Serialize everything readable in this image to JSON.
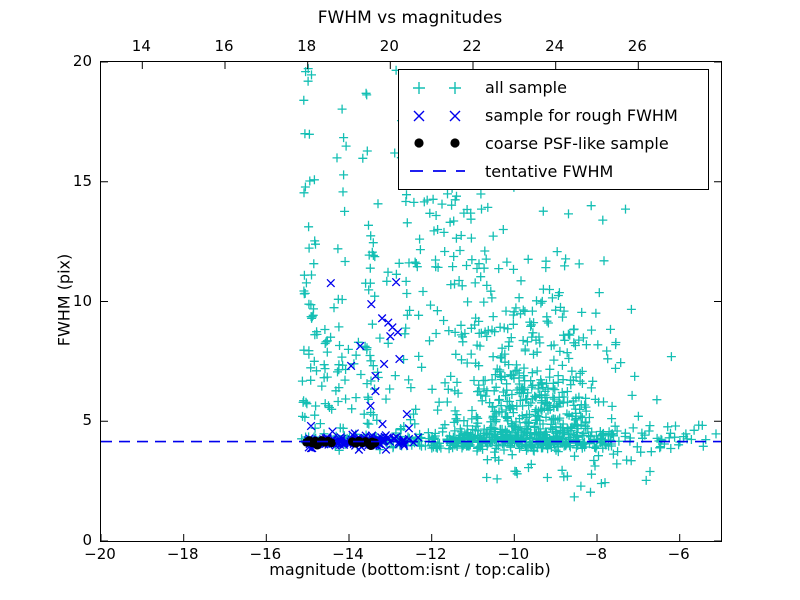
{
  "chart_data": {
    "type": "scatter",
    "title": "FWHM vs magnitudes",
    "xlabel": "magnitude (bottom:isnt / top:calib)",
    "ylabel": "FWHM (pix)",
    "xlim": [
      -20,
      -5
    ],
    "ylim": [
      0,
      20
    ],
    "x_ticks": [
      {
        "v": -20,
        "label": "−20"
      },
      {
        "v": -18,
        "label": "−18"
      },
      {
        "v": -16,
        "label": "−16"
      },
      {
        "v": -14,
        "label": "−14"
      },
      {
        "v": -12,
        "label": "−12"
      },
      {
        "v": -10,
        "label": "−10"
      },
      {
        "v": -8,
        "label": "−8"
      },
      {
        "v": -6,
        "label": "−6"
      }
    ],
    "y_ticks": [
      {
        "v": 0,
        "label": "0"
      },
      {
        "v": 5,
        "label": "5"
      },
      {
        "v": 10,
        "label": "10"
      },
      {
        "v": 15,
        "label": "15"
      },
      {
        "v": 20,
        "label": "20"
      }
    ],
    "top_axis_offset": 33,
    "top_ticks": [
      {
        "calib": 14,
        "label": "14"
      },
      {
        "calib": 16,
        "label": "16"
      },
      {
        "calib": 18,
        "label": "18"
      },
      {
        "calib": 20,
        "label": "20"
      },
      {
        "calib": 22,
        "label": "22"
      },
      {
        "calib": 24,
        "label": "24"
      },
      {
        "calib": 26,
        "label": "26"
      }
    ],
    "tentative_fwhm": 4.15,
    "colors": {
      "all_sample": "#14bfb4",
      "rough_fwhm": "#0000ee",
      "psf_like": "#000000",
      "tentative_line": "#0000ee"
    },
    "legend": [
      {
        "label": "all sample",
        "marker": "plus"
      },
      {
        "label": "sample for rough FWHM",
        "marker": "x"
      },
      {
        "label": "coarse PSF-like sample",
        "marker": "dot"
      },
      {
        "label": "tentative FWHM",
        "marker": "dash"
      }
    ],
    "seed": 7,
    "series": {
      "all_sample": {
        "marker": "plus",
        "clusters": [
          {
            "type": "band",
            "x0": -12.8,
            "x1": -7.6,
            "cy": 4.18,
            "sy": 0.2,
            "n": 280
          },
          {
            "type": "band",
            "x0": -11.5,
            "x1": -8.8,
            "cy": 4.18,
            "sy": 0.22,
            "n": 80
          },
          {
            "type": "band",
            "x0": -15.15,
            "x1": -12.8,
            "cy": 4.2,
            "sy": 0.14,
            "n": 60
          },
          {
            "type": "band",
            "x0": -7.6,
            "x1": -5.15,
            "cy": 4.3,
            "sy": 0.28,
            "n": 26
          },
          {
            "type": "gauss",
            "cx": -9.45,
            "cy": 5.3,
            "sx": 0.95,
            "sy": 1.0,
            "n": 290,
            "yfold": 4.4
          },
          {
            "type": "gauss",
            "cx": -9.95,
            "cy": 8.3,
            "sx": 1.05,
            "sy": 1.4,
            "n": 140,
            "ymin": 6.2,
            "ymax": 13.0
          },
          {
            "type": "uniform",
            "x0": -12.85,
            "x1": -8.6,
            "y0": 11.3,
            "y1": 14.5,
            "n": 42
          },
          {
            "type": "uniform",
            "x0": -12.9,
            "x1": -9.5,
            "y0": 14.5,
            "y1": 19.7,
            "n": 16
          },
          {
            "type": "column",
            "cx": -14.95,
            "sx": 0.09,
            "y0": 4.7,
            "y1": 19.8,
            "bias": 1.7,
            "n": 42
          },
          {
            "type": "column",
            "cx": -14.55,
            "sx": 0.08,
            "y0": 4.7,
            "y1": 9.2,
            "bias": 1.2,
            "n": 12
          },
          {
            "type": "column",
            "cx": -14.15,
            "sx": 0.1,
            "y0": 4.7,
            "y1": 18.6,
            "bias": 1.5,
            "n": 24
          },
          {
            "type": "column",
            "cx": -13.45,
            "sx": 0.11,
            "y0": 4.7,
            "y1": 19.1,
            "bias": 1.4,
            "n": 34
          },
          {
            "type": "column",
            "cx": -12.5,
            "sx": 0.13,
            "y0": 4.7,
            "y1": 19.3,
            "bias": 1.3,
            "n": 28
          },
          {
            "type": "column",
            "cx": -11.9,
            "sx": 0.1,
            "y0": 4.7,
            "y1": 16.2,
            "bias": 1.2,
            "n": 16
          },
          {
            "type": "column",
            "cx": -11.42,
            "sx": 0.11,
            "y0": 4.7,
            "y1": 19.6,
            "bias": 1.2,
            "n": 24
          },
          {
            "type": "column",
            "cx": -10.85,
            "sx": 0.09,
            "y0": 8.0,
            "y1": 19.0,
            "bias": 1.0,
            "n": 12
          },
          {
            "type": "uniform",
            "x0": -15.1,
            "x1": -12.7,
            "y0": 4.9,
            "y1": 11.5,
            "n": 30
          },
          {
            "type": "halfdown",
            "x0": -10.7,
            "x1": -6.4,
            "ytop": 4.0,
            "sy": 0.8,
            "ymin": 1.8,
            "n": 38
          }
        ],
        "points": [
          [
            -8.14,
            14.0
          ],
          [
            -7.31,
            13.86
          ],
          [
            -7.86,
            13.4
          ],
          [
            -8.43,
            11.57
          ],
          [
            -7.83,
            11.7
          ],
          [
            -9.15,
            10.5
          ],
          [
            -9.08,
            10.15
          ],
          [
            -8.33,
            8.48
          ],
          [
            -7.55,
            8.2
          ],
          [
            -6.2,
            7.7
          ],
          [
            -6.55,
            5.9
          ],
          [
            -8.55,
            1.84
          ],
          [
            -9.95,
            2.9
          ],
          [
            -9.2,
            2.65
          ],
          [
            -6.1,
            4.8
          ],
          [
            -5.85,
            4.47
          ],
          [
            -5.54,
            4.84
          ],
          [
            -5.12,
            4.47
          ],
          [
            -6.37,
            4.05
          ],
          [
            -15.05,
            19.6
          ],
          [
            -14.99,
            19.2
          ]
        ]
      },
      "rough_fwhm": {
        "marker": "x",
        "clusters": [
          {
            "type": "band",
            "x0": -15.05,
            "x1": -12.3,
            "cy": 4.17,
            "sy": 0.13,
            "n": 95
          },
          {
            "type": "band",
            "x0": -14.7,
            "x1": -13.2,
            "cy": 4.15,
            "sy": 0.1,
            "n": 45
          }
        ],
        "points": [
          [
            -14.44,
            10.77
          ],
          [
            -12.86,
            10.81
          ],
          [
            -13.46,
            9.89
          ],
          [
            -13.2,
            9.3
          ],
          [
            -13.05,
            9.12
          ],
          [
            -12.95,
            8.92
          ],
          [
            -12.82,
            8.72
          ],
          [
            -13.0,
            8.55
          ],
          [
            -13.73,
            8.14
          ],
          [
            -12.78,
            7.6
          ],
          [
            -13.15,
            7.39
          ],
          [
            -13.95,
            7.31
          ],
          [
            -13.36,
            6.89
          ],
          [
            -13.36,
            6.26
          ],
          [
            -13.48,
            5.64
          ],
          [
            -13.19,
            4.88
          ],
          [
            -14.92,
            4.8
          ],
          [
            -14.92,
            3.88
          ],
          [
            -12.6,
            5.3
          ],
          [
            -12.55,
            4.7
          ]
        ]
      },
      "psf_like": {
        "marker": "dot",
        "points": [
          [
            -15.03,
            4.12
          ],
          [
            -14.96,
            4.2
          ],
          [
            -14.89,
            4.09
          ],
          [
            -14.81,
            4.17
          ],
          [
            -14.73,
            4.1
          ],
          [
            -14.66,
            4.2
          ],
          [
            -14.58,
            4.12
          ],
          [
            -14.5,
            4.18
          ],
          [
            -14.42,
            4.1
          ],
          [
            -14.77,
            4.0
          ],
          [
            -13.92,
            4.15
          ],
          [
            -13.84,
            4.08
          ],
          [
            -13.76,
            4.18
          ],
          [
            -13.68,
            4.1
          ],
          [
            -13.6,
            4.16
          ],
          [
            -13.52,
            4.07
          ],
          [
            -13.44,
            4.14
          ],
          [
            -13.37,
            4.1
          ],
          [
            -13.47,
            3.98
          ]
        ]
      }
    }
  }
}
